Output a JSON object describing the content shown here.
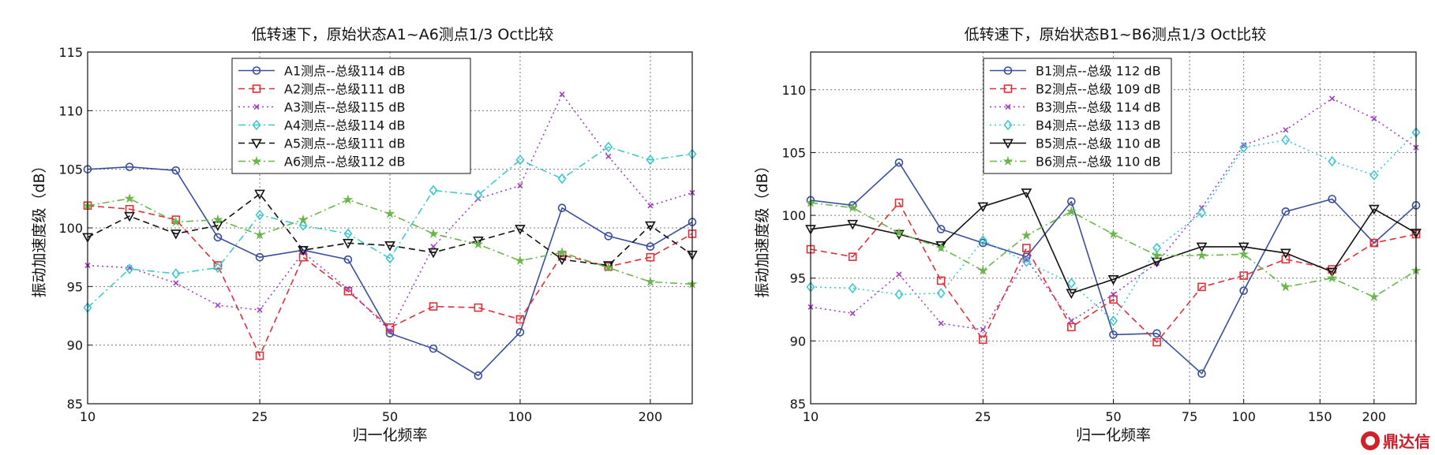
{
  "chart_data": [
    {
      "type": "line",
      "title": "低转速下，原始状态A1~A6测点1/3 Oct比较",
      "xlabel": "归一化频率",
      "ylabel": "振动加速度级（dB）",
      "xscale": "log",
      "xlim": [
        10,
        250
      ],
      "ylim": [
        85,
        115
      ],
      "xticks": [
        10,
        25,
        50,
        100,
        200
      ],
      "xtick_labels": [
        "10",
        "25",
        "50",
        "100",
        "200"
      ],
      "yticks": [
        85,
        90,
        95,
        100,
        105,
        110,
        115
      ],
      "ytick_labels": [
        "85",
        "90",
        "95",
        "100",
        "105",
        "110",
        "115"
      ],
      "grid": true,
      "legend_position": "top-center",
      "x": [
        10,
        12.5,
        16,
        20,
        25,
        31.5,
        40,
        50,
        63,
        80,
        100,
        125,
        160,
        200,
        250
      ],
      "series": [
        {
          "name": "A1测点--总级114  dB",
          "color": "#3a4f9b",
          "dash": "solid",
          "marker": "circle",
          "values": [
            105.0,
            105.2,
            104.9,
            99.2,
            97.5,
            98.1,
            97.3,
            91.0,
            89.7,
            87.4,
            91.1,
            101.7,
            99.3,
            98.4,
            100.5
          ]
        },
        {
          "name": "A2测点--总级111  dB",
          "color": "#e0303a",
          "dash": "dashed",
          "marker": "square",
          "values": [
            101.9,
            101.6,
            100.7,
            96.8,
            89.1,
            97.5,
            94.6,
            91.5,
            93.3,
            93.2,
            92.2,
            97.7,
            96.7,
            97.5,
            99.5
          ]
        },
        {
          "name": "A3测点--总级115  dB",
          "color": "#a040c0",
          "dash": "dotted",
          "marker": "x",
          "values": [
            96.8,
            96.6,
            95.3,
            93.4,
            93.0,
            97.9,
            94.8,
            91.2,
            98.4,
            102.5,
            103.6,
            111.4,
            106.1,
            101.9,
            103.0
          ]
        },
        {
          "name": "A4测点--总级114  dB",
          "color": "#40c8d0",
          "dash": "dashdot",
          "marker": "diamond",
          "values": [
            93.2,
            96.5,
            96.1,
            96.6,
            101.1,
            100.2,
            99.5,
            97.4,
            103.2,
            102.8,
            105.8,
            104.2,
            106.9,
            105.8,
            106.3
          ]
        },
        {
          "name": "A5测点--总级111  dB",
          "color": "#111111",
          "dash": "dashed",
          "marker": "triangle-down",
          "values": [
            99.2,
            101.0,
            99.5,
            100.2,
            102.9,
            98.1,
            98.7,
            98.5,
            97.9,
            98.9,
            99.9,
            97.3,
            96.8,
            100.2,
            97.7
          ]
        },
        {
          "name": "A6测点--总级112  dB",
          "color": "#6ab64a",
          "dash": "dashdot",
          "marker": "star",
          "values": [
            101.9,
            102.5,
            100.5,
            100.7,
            99.4,
            100.7,
            102.4,
            101.2,
            99.5,
            98.6,
            97.2,
            97.9,
            96.6,
            95.4,
            95.2
          ]
        }
      ]
    },
    {
      "type": "line",
      "title": "低转速下，原始状态B1~B6测点1/3 Oct比较",
      "xlabel": "归一化频率",
      "ylabel": "振动加速度级（dB）",
      "xscale": "log",
      "xlim": [
        10,
        250
      ],
      "ylim": [
        85,
        113
      ],
      "xticks": [
        10,
        25,
        50,
        75,
        100,
        150,
        200
      ],
      "xtick_labels": [
        "10",
        "25",
        "50",
        "75",
        "100",
        "150",
        "200"
      ],
      "yticks": [
        85,
        90,
        95,
        100,
        105,
        110
      ],
      "ytick_labels": [
        "85",
        "90",
        "95",
        "100",
        "105",
        "110"
      ],
      "grid": true,
      "legend_position": "top-left",
      "x": [
        10,
        12.5,
        16,
        20,
        25,
        31.5,
        40,
        50,
        63,
        80,
        100,
        125,
        160,
        200,
        250
      ],
      "series": [
        {
          "name": "B1测点--总级 112 dB",
          "color": "#3a4f9b",
          "dash": "solid",
          "marker": "circle",
          "values": [
            101.2,
            100.8,
            104.2,
            98.9,
            97.8,
            96.7,
            101.1,
            90.5,
            90.6,
            87.4,
            94.0,
            100.3,
            101.3,
            97.8,
            100.8
          ]
        },
        {
          "name": "B2测点--总级 109 dB",
          "color": "#e0303a",
          "dash": "dashed",
          "marker": "square",
          "values": [
            97.3,
            96.7,
            101.0,
            94.8,
            90.1,
            97.4,
            91.1,
            93.3,
            89.9,
            94.3,
            95.2,
            96.5,
            95.7,
            97.8,
            98.5
          ]
        },
        {
          "name": "B3测点--总级 114 dB",
          "color": "#a040c0",
          "dash": "dotted",
          "marker": "x",
          "values": [
            92.7,
            92.2,
            95.3,
            91.4,
            90.9,
            96.5,
            91.6,
            93.7,
            96.2,
            100.6,
            105.6,
            106.8,
            109.3,
            107.7,
            105.4
          ]
        },
        {
          "name": "B4测点--总级 113 dB",
          "color": "#40c8d0",
          "dash": "dotted",
          "marker": "diamond",
          "values": [
            94.3,
            94.2,
            93.7,
            93.8,
            98.0,
            96.3,
            94.6,
            91.6,
            97.4,
            100.2,
            105.4,
            106.0,
            104.3,
            103.2,
            106.6
          ]
        },
        {
          "name": "B5测点--总级 110 dB",
          "color": "#111111",
          "dash": "solid",
          "marker": "triangle-down",
          "values": [
            98.9,
            99.3,
            98.5,
            97.6,
            100.7,
            101.8,
            93.8,
            94.9,
            96.3,
            97.5,
            97.5,
            97.0,
            95.5,
            100.5,
            98.6
          ]
        },
        {
          "name": "B6测点--总级 110 dB",
          "color": "#6ab64a",
          "dash": "dashdot",
          "marker": "star",
          "values": [
            101.0,
            100.6,
            98.6,
            97.4,
            95.6,
            98.4,
            100.3,
            98.5,
            96.8,
            96.8,
            96.9,
            94.3,
            95.0,
            93.5,
            95.6
          ]
        }
      ]
    }
  ],
  "watermark": {
    "text": "鼎达信"
  }
}
